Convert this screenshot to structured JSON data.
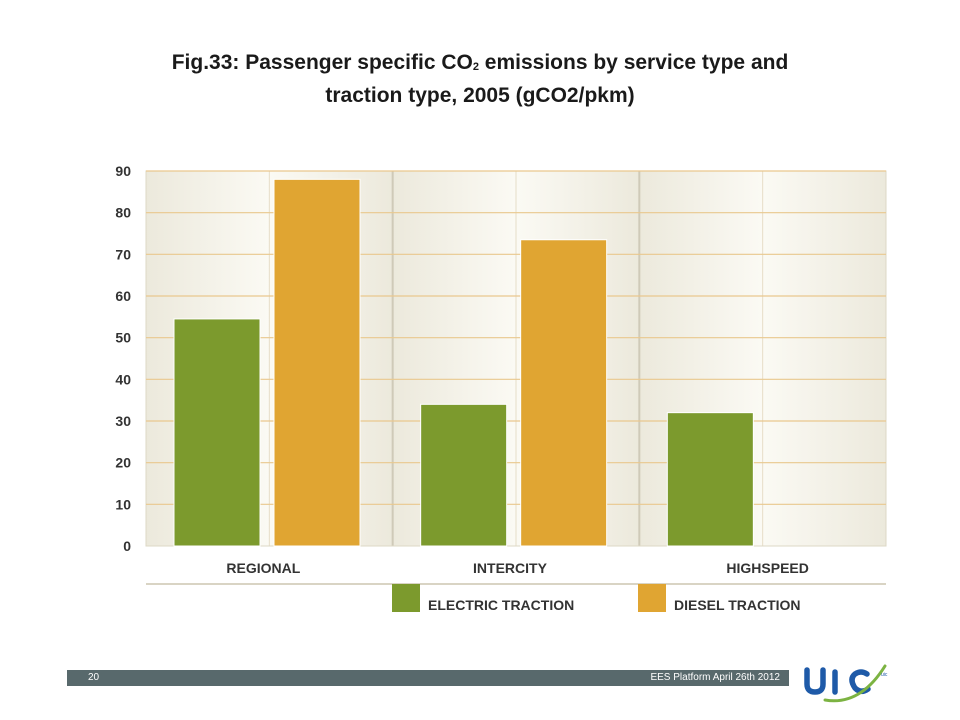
{
  "header": {
    "title_part1": "Fig.33: Passenger specific CO",
    "title_sub": "2",
    "title_part2": " emissions by service type and",
    "title_line2": "traction type, 2005 (gCO2/pkm)"
  },
  "chart_data": {
    "type": "bar",
    "title": "Fig.33: Passenger specific CO2 emissions by service type and traction type, 2005 (gCO2/pkm)",
    "categories": [
      "REGIONAL",
      "INTERCITY",
      "HIGHSPEED"
    ],
    "series": [
      {
        "name": "ELECTRIC TRACTION",
        "color": "#7c9a2d",
        "values": [
          54.5,
          34,
          32
        ]
      },
      {
        "name": "DIESEL TRACTION",
        "color": "#e0a532",
        "values": [
          88,
          73.5,
          null
        ]
      }
    ],
    "yticks": [
      0,
      10,
      20,
      30,
      40,
      50,
      60,
      70,
      80,
      90
    ],
    "ylim": [
      0,
      90
    ],
    "xlabel": "",
    "ylabel": "",
    "legend_position": "bottom",
    "grid": true
  },
  "footer": {
    "page_number": "20",
    "text": "EES Platform April 26th 2012",
    "logo_text": "uic"
  }
}
